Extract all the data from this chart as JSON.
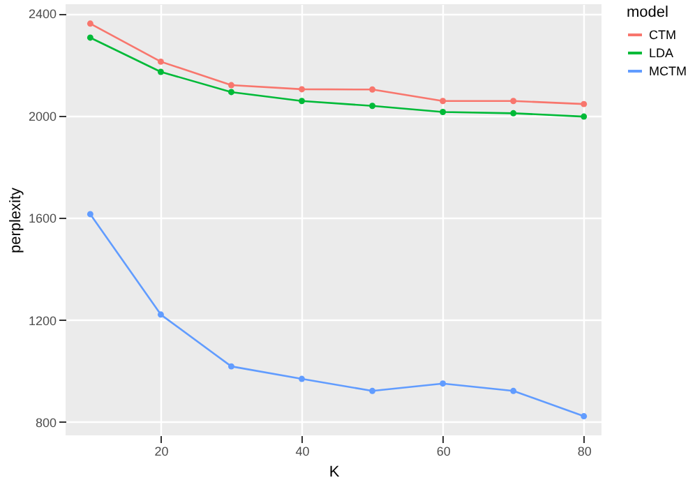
{
  "chart_data": {
    "type": "line",
    "xlabel": "K",
    "ylabel": "perplexity",
    "legend_title": "model",
    "x": [
      10,
      20,
      30,
      40,
      50,
      60,
      70,
      80
    ],
    "series": [
      {
        "name": "CTM",
        "color": "#f8766d",
        "values": [
          2360,
          2211,
          2119,
          2103,
          2102,
          2057,
          2057,
          2045
        ]
      },
      {
        "name": "LDA",
        "color": "#00ba38",
        "values": [
          2305,
          2171,
          2092,
          2057,
          2038,
          2014,
          2009,
          1996
        ]
      },
      {
        "name": "MCTM",
        "color": "#619cff",
        "values": [
          1614,
          1221,
          1018,
          969,
          922,
          951,
          922,
          823
        ]
      }
    ],
    "xlim": [
      6.5,
      82.5
    ],
    "xticks": [
      20,
      40,
      60,
      80
    ],
    "ylim": [
      748,
      2436
    ],
    "yticks": [
      800,
      1200,
      1600,
      2000,
      2400
    ],
    "grid": true,
    "legend": "right",
    "marker": "circle",
    "line_style": "solid"
  }
}
